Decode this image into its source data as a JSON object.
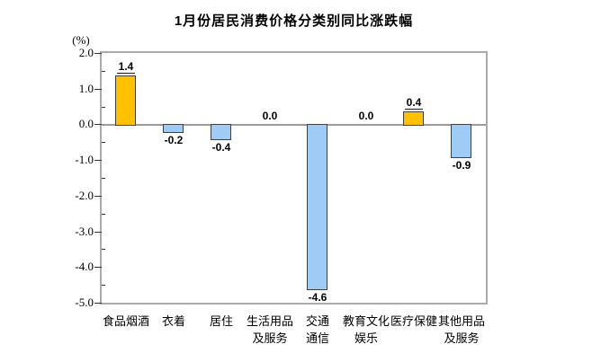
{
  "chart_data": {
    "type": "bar",
    "title": "1月份居民消费价格分类别同比涨跌幅",
    "unit_label": "(%)",
    "categories": [
      "食品烟酒",
      "衣着",
      "居住",
      "生活用品\n及服务",
      "交通\n通信",
      "教育文化\n娱乐",
      "医疗保健",
      "其他用品\n及服务"
    ],
    "values": [
      1.4,
      -0.2,
      -0.4,
      0.0,
      -4.6,
      0.0,
      0.4,
      -0.9
    ],
    "value_labels": [
      "1.4",
      "-0.2",
      "-0.4",
      "0.0",
      "-4.6",
      "0.0",
      "0.4",
      "-0.9"
    ],
    "bar_colors": [
      "#FFC000",
      "#9FCCF5",
      "#9FCCF5",
      "none",
      "#9FCCF5",
      "none",
      "#FFC000",
      "#9FCCF5"
    ],
    "ylim": [
      -5.0,
      2.0
    ],
    "ytick_labels": [
      "2.0",
      "1.0",
      "0.0",
      "-1.0",
      "-2.0",
      "-3.0",
      "-4.0",
      "-5.0"
    ],
    "yticks": [
      2.0,
      1.0,
      0.0,
      -1.0,
      -2.0,
      -3.0,
      -4.0,
      -5.0
    ],
    "minor_ticks": [
      1.5,
      0.5,
      -0.5,
      -1.5,
      -2.5,
      -3.5,
      -4.5
    ],
    "grid": false,
    "legend": "none",
    "xlabel": "",
    "ylabel": "(%)"
  },
  "colors": {
    "positive_bar": "#FFC000",
    "negative_bar": "#9FCCF5",
    "bar_border": "#404040",
    "plot_border": "#ABABAB",
    "zero_line": "#9C9C9C",
    "tick": "#333333",
    "text": "#000000",
    "background": "#FFFFFF"
  }
}
